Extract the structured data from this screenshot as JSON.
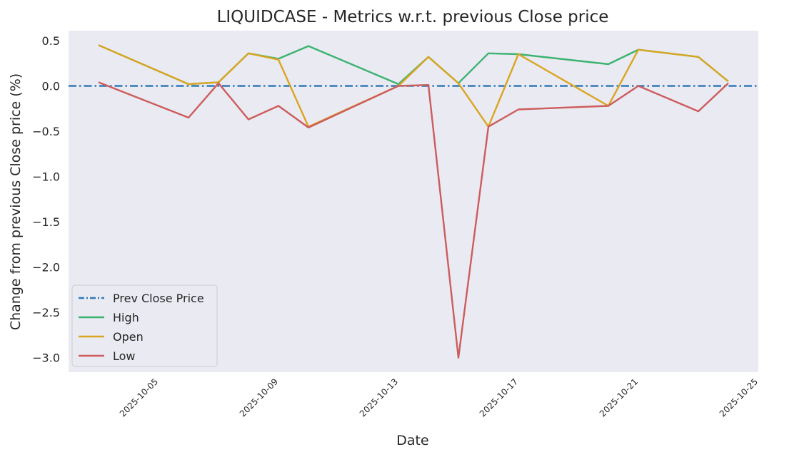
{
  "chart_data": {
    "type": "line",
    "title": "LIQUIDCASE - Metrics w.r.t. previous Close price",
    "xlabel": "Date",
    "ylabel": "Change from previous Close price (%)",
    "x": [
      "2025-10-03",
      "2025-10-06",
      "2025-10-07",
      "2025-10-08",
      "2025-10-09",
      "2025-10-10",
      "2025-10-13",
      "2025-10-14",
      "2025-10-15",
      "2025-10-16",
      "2025-10-17",
      "2025-10-20",
      "2025-10-21",
      "2025-10-23",
      "2025-10-24"
    ],
    "x_ticks": [
      "2025-10-05",
      "2025-10-09",
      "2025-10-13",
      "2025-10-17",
      "2025-10-21",
      "2025-10-25"
    ],
    "xlim": [
      "2025-10-02",
      "2025-10-25"
    ],
    "y_ticks": [
      0.5,
      0.0,
      -0.5,
      -1.0,
      -1.5,
      -2.0,
      -2.5,
      -3.0
    ],
    "y_tick_labels": [
      "0.5",
      "0.0",
      "−0.5",
      "−1.0",
      "−1.5",
      "−2.0",
      "−2.5",
      "−3.0"
    ],
    "ylim": [
      -3.16,
      0.61
    ],
    "reference_line": {
      "name": "Prev Close Price",
      "value": 0.0,
      "color": "#2f7ab8",
      "style": "dash-dot"
    },
    "series": [
      {
        "name": "High",
        "color": "#3cb371",
        "values": [
          0.45,
          0.02,
          0.04,
          0.36,
          0.3,
          0.44,
          0.02,
          0.32,
          0.03,
          0.36,
          0.35,
          0.24,
          0.4,
          0.32,
          0.05
        ]
      },
      {
        "name": "Open",
        "color": "#daa520",
        "values": [
          0.45,
          0.02,
          0.04,
          0.36,
          0.29,
          -0.45,
          0.0,
          0.32,
          0.03,
          -0.45,
          0.35,
          -0.22,
          0.4,
          0.32,
          0.05
        ]
      },
      {
        "name": "Low",
        "color": "#cd5c5c",
        "values": [
          0.04,
          -0.35,
          0.03,
          -0.37,
          -0.22,
          -0.46,
          0.0,
          0.01,
          -3.0,
          -0.45,
          -0.26,
          -0.22,
          0.0,
          -0.28,
          0.03
        ]
      }
    ],
    "legend": {
      "position": "lower-left",
      "entries": [
        "Prev Close Price",
        "High",
        "Open",
        "Low"
      ]
    },
    "grid": false,
    "background": "#eaeaf2"
  }
}
